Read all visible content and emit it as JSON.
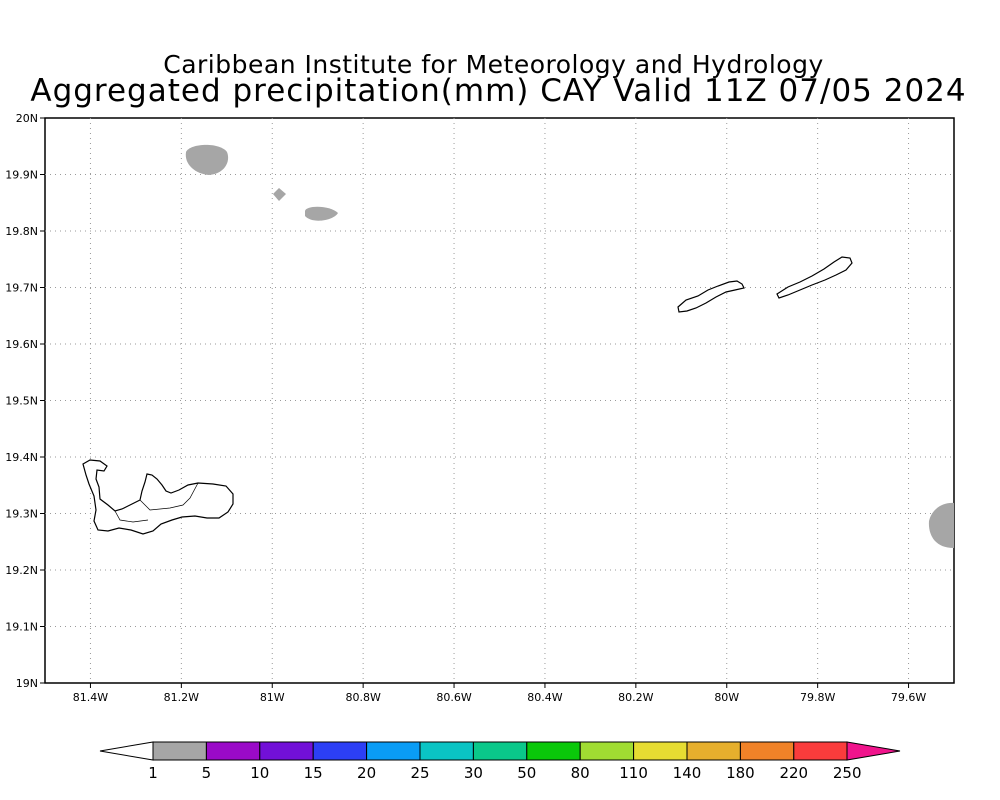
{
  "title": {
    "line1": "Caribbean Institute for Meteorology and Hydrology",
    "line2": "Aggregated precipitation(mm) CAY Valid 11Z 07/05 2024"
  },
  "map": {
    "lon_range": [
      -81.5,
      -79.5
    ],
    "lat_range": [
      19.0,
      20.0
    ],
    "grid": true,
    "lon_ticks": [
      "81.4W",
      "81.2W",
      "81W",
      "80.8W",
      "80.6W",
      "80.4W",
      "80.2W",
      "80W",
      "79.8W",
      "79.6W"
    ],
    "lat_ticks": [
      "19N",
      "19.1N",
      "19.2N",
      "19.3N",
      "19.4N",
      "19.5N",
      "19.6N",
      "19.7N",
      "19.8N",
      "19.9N",
      "20N"
    ],
    "land_features": [
      "Grand Cayman",
      "Little Cayman",
      "Cayman Brac"
    ],
    "precip_areas": [
      {
        "lon": -81.14,
        "lat": 19.93,
        "class": "1-5"
      },
      {
        "lon": -80.98,
        "lat": 19.87,
        "class": "1-5"
      },
      {
        "lon": -80.89,
        "lat": 19.83,
        "class": "1-5"
      },
      {
        "lon": -79.51,
        "lat": 19.28,
        "class": "1-5"
      }
    ]
  },
  "colorbar": {
    "labels": [
      "1",
      "5",
      "10",
      "15",
      "20",
      "25",
      "30",
      "50",
      "80",
      "110",
      "140",
      "180",
      "220",
      "250"
    ],
    "colors": [
      "#a6a6a6",
      "#9a0ac8",
      "#7210d8",
      "#2c3ff5",
      "#0a9cf5",
      "#0ac4c4",
      "#0ac88a",
      "#0ac80a",
      "#a0dc32",
      "#e6dc32",
      "#e6af2d",
      "#f08228",
      "#fa3c3c",
      "#f0148c"
    ],
    "under_color": "#ffffff",
    "over_color": "#f0148c"
  }
}
